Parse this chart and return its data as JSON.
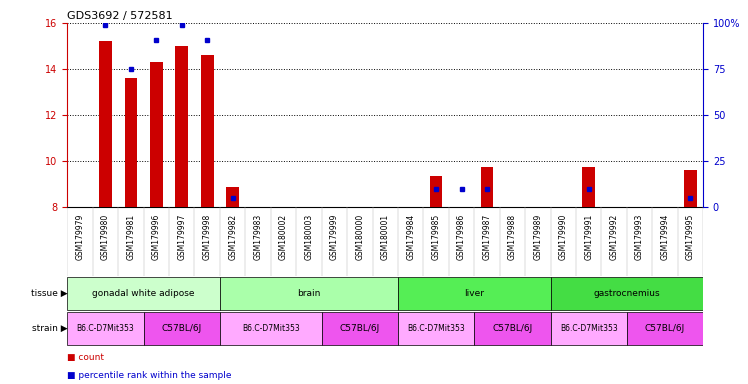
{
  "title": "GDS3692 / 572581",
  "samples": [
    "GSM179979",
    "GSM179980",
    "GSM179981",
    "GSM179996",
    "GSM179997",
    "GSM179998",
    "GSM179982",
    "GSM179983",
    "GSM180002",
    "GSM180003",
    "GSM179999",
    "GSM180000",
    "GSM180001",
    "GSM179984",
    "GSM179985",
    "GSM179986",
    "GSM179987",
    "GSM179988",
    "GSM179989",
    "GSM179990",
    "GSM179991",
    "GSM179992",
    "GSM179993",
    "GSM179994",
    "GSM179995"
  ],
  "count_values": [
    8.0,
    15.2,
    13.6,
    14.3,
    15.0,
    14.6,
    8.9,
    8.0,
    8.0,
    8.0,
    8.0,
    8.0,
    8.0,
    8.0,
    9.35,
    8.0,
    9.75,
    8.0,
    8.0,
    8.0,
    9.75,
    8.0,
    8.0,
    8.0,
    9.6
  ],
  "percentile_values": [
    null,
    99,
    75,
    91,
    99,
    91,
    5,
    null,
    null,
    null,
    null,
    null,
    null,
    null,
    10,
    10,
    10,
    null,
    null,
    null,
    10,
    null,
    null,
    null,
    5
  ],
  "ylim_left": [
    8,
    16
  ],
  "ylim_right": [
    0,
    100
  ],
  "yticks_left": [
    8,
    10,
    12,
    14,
    16
  ],
  "yticks_right": [
    0,
    25,
    50,
    75,
    100
  ],
  "bar_color": "#cc0000",
  "dot_color": "#0000cc",
  "tissue_groups": [
    {
      "label": "gonadal white adipose",
      "start": 0,
      "end": 6,
      "color": "#ccffcc"
    },
    {
      "label": "brain",
      "start": 6,
      "end": 13,
      "color": "#aaffaa"
    },
    {
      "label": "liver",
      "start": 13,
      "end": 19,
      "color": "#55ee55"
    },
    {
      "label": "gastrocnemius",
      "start": 19,
      "end": 25,
      "color": "#44dd44"
    }
  ],
  "strain_groups": [
    {
      "label": "B6.C-D7Mit353",
      "start": 0,
      "end": 3,
      "color": "#ffaaff"
    },
    {
      "label": "C57BL/6J",
      "start": 3,
      "end": 6,
      "color": "#ee55ee"
    },
    {
      "label": "B6.C-D7Mit353",
      "start": 6,
      "end": 10,
      "color": "#ffaaff"
    },
    {
      "label": "C57BL/6J",
      "start": 10,
      "end": 13,
      "color": "#ee55ee"
    },
    {
      "label": "B6.C-D7Mit353",
      "start": 13,
      "end": 16,
      "color": "#ffaaff"
    },
    {
      "label": "C57BL/6J",
      "start": 16,
      "end": 19,
      "color": "#ee55ee"
    },
    {
      "label": "B6.C-D7Mit353",
      "start": 19,
      "end": 22,
      "color": "#ffaaff"
    },
    {
      "label": "C57BL/6J",
      "start": 22,
      "end": 25,
      "color": "#ee55ee"
    }
  ],
  "left_axis_color": "#cc0000",
  "right_axis_color": "#0000cc",
  "bar_width": 0.5,
  "xtick_bg": "#d8d8d8"
}
